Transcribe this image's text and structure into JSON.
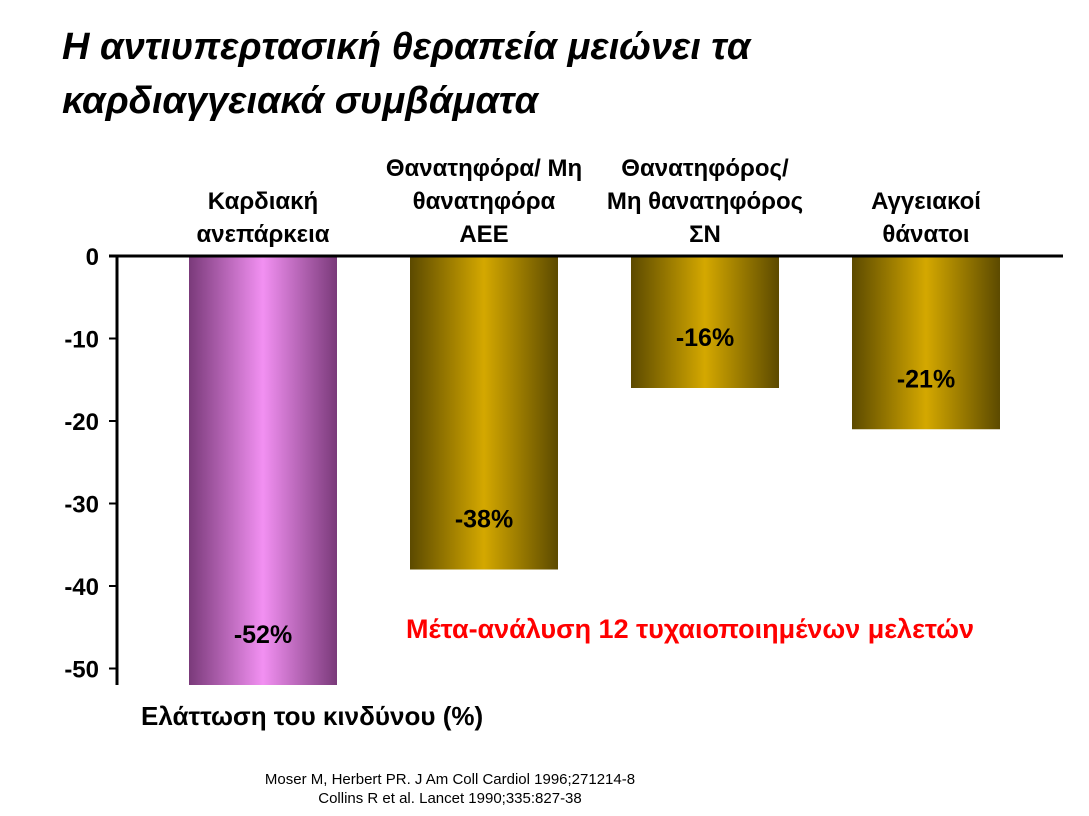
{
  "title": {
    "line1": "Η αντιυπερτασική θεραπεία μειώνει τα",
    "line2": "καρδιαγγειακά συμβάματα"
  },
  "chart_data": {
    "type": "bar",
    "categories": [
      [
        "Καρδιακή",
        "ανεπάρκεια"
      ],
      [
        "Θανατηφόρα/ Μη",
        "θανατηφόρα",
        "ΑΕΕ"
      ],
      [
        "Θανατηφόρος/",
        "Μη θανατηφόρος",
        "ΣΝ"
      ],
      [
        "Αγγειακοί",
        "θάνατοι"
      ]
    ],
    "values": [
      -52,
      -38,
      -16,
      -21
    ],
    "data_labels": [
      "-52%",
      "-38%",
      "-16%",
      "-21%"
    ],
    "bar_colors": [
      "#f290f2",
      "#d4a800",
      "#d4a800",
      "#d4a800"
    ],
    "bar_edge_colors": [
      "#7a3a7a",
      "#5c4a00",
      "#5c4a00",
      "#5c4a00"
    ],
    "ylim": [
      -52,
      0
    ],
    "yticks": [
      0,
      -10,
      -20,
      -30,
      -40,
      -50
    ],
    "ylabel": "Ελάττωση του κινδύνου (%)",
    "annotation": "Μέτα-ανάλυση 12 τυχαιοποιημένων μελετών",
    "annotation_color": "#ff0000",
    "grid": false
  },
  "references": [
    "Moser M, Herbert PR.  J Am Coll Cardiol 1996;271214-8",
    "Collins R et al. Lancet 1990;335:827-38"
  ]
}
